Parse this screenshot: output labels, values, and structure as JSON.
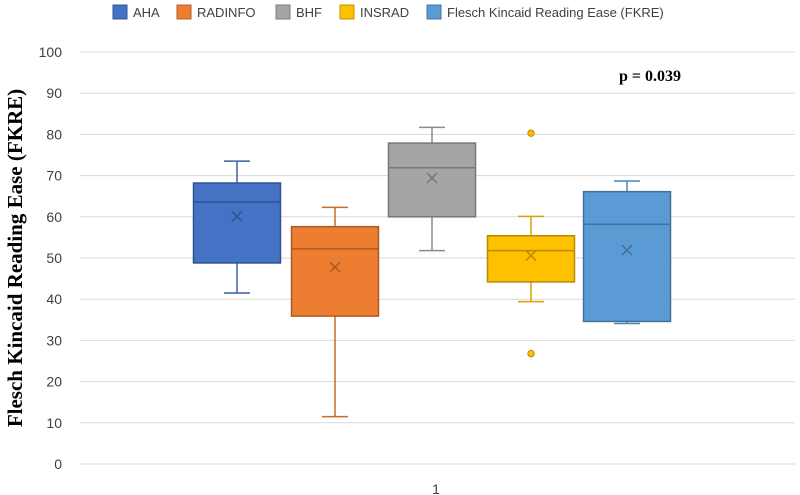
{
  "chart_data": {
    "type": "box",
    "ylabel": "Flesch Kincaid Reading Ease (FKRE)",
    "category_label": "1",
    "annotation": "p = 0.039",
    "ylim": [
      0,
      100
    ],
    "yticks": [
      "0",
      "10",
      "20",
      "30",
      "40",
      "50",
      "60",
      "70",
      "80",
      "90",
      "100"
    ],
    "grid": true,
    "legend_position": "top",
    "series": [
      {
        "name": "AHA",
        "color": "#4472C4",
        "min": 41.5,
        "q1": 48.8,
        "median": 63.6,
        "q3": 68.2,
        "max": 73.5,
        "mean": 60.1,
        "outliers": []
      },
      {
        "name": "RADINFO",
        "color": "#ED7D31",
        "min": 11.5,
        "q1": 35.9,
        "median": 52.2,
        "q3": 57.6,
        "max": 62.3,
        "mean": 47.8,
        "outliers": []
      },
      {
        "name": "BHF",
        "color": "#A5A5A5",
        "min": 51.8,
        "q1": 60.0,
        "median": 71.9,
        "q3": 77.9,
        "max": 81.7,
        "mean": 69.4,
        "outliers": []
      },
      {
        "name": "INSRAD",
        "color": "#FFC000",
        "min": 39.4,
        "q1": 44.2,
        "median": 51.8,
        "q3": 55.4,
        "max": 60.1,
        "mean": 50.6,
        "outliers": [
          80.3,
          26.8
        ]
      },
      {
        "name": "Flesch Kincaid Reading Ease (FKRE)",
        "color": "#5B9BD5",
        "min": 34.1,
        "q1": 34.6,
        "median": 58.2,
        "q3": 66.1,
        "max": 68.7,
        "mean": 51.9,
        "outliers": []
      }
    ]
  }
}
